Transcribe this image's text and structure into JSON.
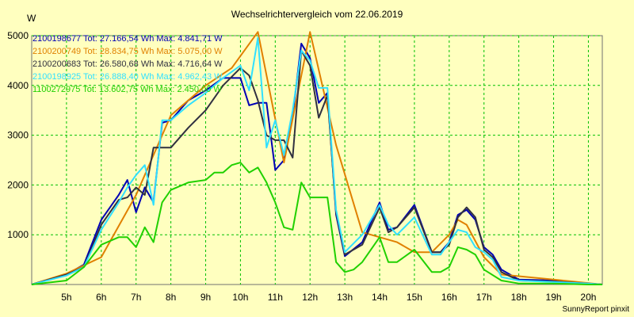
{
  "chart_data": {
    "type": "line",
    "title": "Wechselrichtervergleich vom 22.06.2019",
    "ylabel": "W",
    "xlabel": "",
    "credit": "SunnyReport pinxit",
    "xlim": [
      4.0,
      20.4
    ],
    "ylim": [
      0,
      5000
    ],
    "grid": true,
    "legend_position": "top-left",
    "x_ticks": [
      {
        "value": 5,
        "label": "5h"
      },
      {
        "value": 6,
        "label": "6h"
      },
      {
        "value": 7,
        "label": "7h"
      },
      {
        "value": 8,
        "label": "8h"
      },
      {
        "value": 9,
        "label": "9h"
      },
      {
        "value": 10,
        "label": "10h"
      },
      {
        "value": 11,
        "label": "11h"
      },
      {
        "value": 12,
        "label": "12h"
      },
      {
        "value": 13,
        "label": "13h"
      },
      {
        "value": 14,
        "label": "14h"
      },
      {
        "value": 15,
        "label": "15h"
      },
      {
        "value": 16,
        "label": "16h"
      },
      {
        "value": 17,
        "label": "17h"
      },
      {
        "value": 18,
        "label": "18h"
      },
      {
        "value": 19,
        "label": "19h"
      },
      {
        "value": 20,
        "label": "20h"
      }
    ],
    "y_ticks": [
      {
        "value": 1000,
        "label": "1000"
      },
      {
        "value": 2000,
        "label": "2000"
      },
      {
        "value": 3000,
        "label": "3000"
      },
      {
        "value": 4000,
        "label": "4000"
      },
      {
        "value": 5000,
        "label": "5000"
      }
    ],
    "series": [
      {
        "name": "2100198677 Tot: 27.166,54 Wh Max: 4.841,71 W",
        "color": "#0000b4",
        "x": [
          4.0,
          5.0,
          5.5,
          6.0,
          6.5,
          6.75,
          7.0,
          7.25,
          7.5,
          7.75,
          8.0,
          8.5,
          9.0,
          9.5,
          10.0,
          10.25,
          10.5,
          10.75,
          11.0,
          11.25,
          11.5,
          11.75,
          12.0,
          12.25,
          12.5,
          12.75,
          13.0,
          13.5,
          14.0,
          14.25,
          14.5,
          15.0,
          15.5,
          15.75,
          16.0,
          16.25,
          16.5,
          16.75,
          17.0,
          17.25,
          17.5,
          18.0,
          19.0,
          20.0,
          20.4
        ],
        "y": [
          0,
          200,
          400,
          1300,
          1800,
          2100,
          1450,
          1950,
          1650,
          3250,
          3300,
          3700,
          3900,
          4150,
          4150,
          3600,
          3650,
          3650,
          2300,
          2500,
          3400,
          4840,
          4550,
          3650,
          3850,
          1400,
          570,
          850,
          1650,
          1100,
          1150,
          1600,
          650,
          650,
          850,
          1400,
          1500,
          1300,
          750,
          600,
          300,
          100,
          80,
          20,
          0
        ]
      },
      {
        "name": "2100200749 Tot: 28.834,75 Wh Max: 5.075,00 W",
        "color": "#e08000",
        "x": [
          4.0,
          5.0,
          6.0,
          7.0,
          8.0,
          9.0,
          9.75,
          10.5,
          11.25,
          12.0,
          12.75,
          13.5,
          14.5,
          15.0,
          15.5,
          16.0,
          16.25,
          16.5,
          17.0,
          17.5,
          19.0,
          20.4
        ],
        "y": [
          0,
          220,
          550,
          1800,
          3400,
          4000,
          4350,
          5075,
          2450,
          5075,
          2800,
          1050,
          850,
          650,
          650,
          1000,
          1300,
          1200,
          550,
          200,
          100,
          0
        ]
      },
      {
        "name": "2100200683 Tot: 26.580,68 Wh Max: 4.716,64 W",
        "color": "#303040",
        "x": [
          4.0,
          5.0,
          5.5,
          6.0,
          6.5,
          6.75,
          7.0,
          7.25,
          7.5,
          7.75,
          8.0,
          8.5,
          9.0,
          9.5,
          10.0,
          10.25,
          10.5,
          10.75,
          11.0,
          11.25,
          11.5,
          11.75,
          12.0,
          12.25,
          12.5,
          12.75,
          13.0,
          13.5,
          14.0,
          14.25,
          14.5,
          15.0,
          15.5,
          15.75,
          16.0,
          16.25,
          16.5,
          16.75,
          17.0,
          17.25,
          17.5,
          18.0,
          19.0,
          20.0,
          20.4
        ],
        "y": [
          0,
          200,
          350,
          1200,
          1700,
          1750,
          1950,
          1800,
          2750,
          2750,
          2750,
          3150,
          3500,
          4000,
          4350,
          4200,
          3700,
          3000,
          2900,
          2900,
          2550,
          4700,
          4400,
          3350,
          3800,
          1450,
          600,
          800,
          1550,
          1050,
          1150,
          1550,
          650,
          650,
          800,
          1350,
          1550,
          1350,
          700,
          550,
          250,
          80,
          60,
          20,
          0
        ]
      },
      {
        "name": "2100198925 Tot: 26.888,40 Wh Max: 4.962,43 W",
        "color": "#30e0ff",
        "x": [
          4.0,
          5.0,
          5.5,
          6.0,
          6.5,
          6.75,
          7.0,
          7.25,
          7.5,
          7.75,
          8.0,
          8.5,
          9.0,
          9.5,
          10.0,
          10.25,
          10.5,
          10.75,
          11.0,
          11.25,
          11.5,
          11.75,
          12.0,
          12.25,
          12.5,
          12.75,
          13.0,
          13.5,
          14.0,
          14.25,
          14.5,
          15.0,
          15.5,
          15.75,
          16.0,
          16.25,
          16.5,
          16.75,
          17.0,
          17.25,
          17.5,
          18.0,
          19.0,
          20.0,
          20.4
        ],
        "y": [
          0,
          180,
          350,
          1100,
          1650,
          1950,
          2200,
          2400,
          1600,
          3300,
          3300,
          3600,
          3850,
          4150,
          4400,
          3900,
          4960,
          2750,
          3300,
          2600,
          3500,
          4700,
          4500,
          3950,
          3950,
          1500,
          650,
          1000,
          1600,
          1200,
          1000,
          1350,
          600,
          600,
          850,
          1100,
          1050,
          750,
          650,
          500,
          150,
          80,
          50,
          20,
          0
        ]
      },
      {
        "name": "1100272975 Tot: 13.602,75 Wh Max: 2.450,00 W",
        "color": "#20d000",
        "x": [
          4.0,
          5.0,
          5.5,
          6.0,
          6.5,
          6.75,
          7.0,
          7.25,
          7.5,
          7.75,
          8.0,
          8.5,
          9.0,
          9.25,
          9.5,
          9.75,
          10.0,
          10.25,
          10.5,
          10.75,
          11.0,
          11.25,
          11.5,
          11.75,
          12.0,
          12.25,
          12.5,
          12.75,
          13.0,
          13.25,
          13.5,
          14.0,
          14.25,
          14.5,
          15.0,
          15.5,
          15.75,
          16.0,
          16.25,
          16.5,
          16.75,
          17.0,
          17.5,
          18.0,
          19.0,
          20.0,
          20.4
        ],
        "y": [
          0,
          80,
          350,
          800,
          950,
          950,
          750,
          1150,
          850,
          1650,
          1900,
          2050,
          2100,
          2250,
          2250,
          2400,
          2450,
          2250,
          2350,
          2050,
          1650,
          1150,
          1100,
          2050,
          1750,
          1750,
          1750,
          450,
          250,
          300,
          450,
          950,
          450,
          450,
          700,
          250,
          250,
          350,
          750,
          700,
          600,
          300,
          80,
          20,
          20,
          0,
          0
        ]
      }
    ]
  }
}
